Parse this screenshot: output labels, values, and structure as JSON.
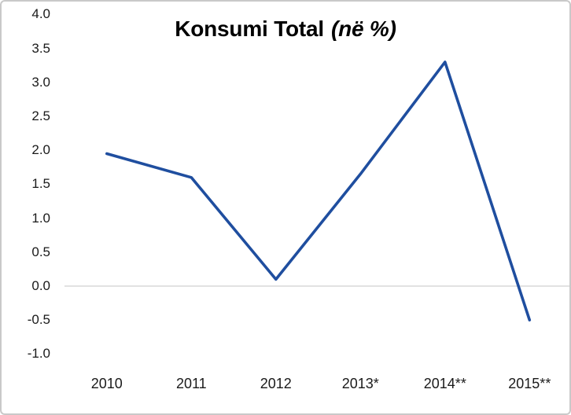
{
  "chart_data": {
    "type": "line",
    "title": "Konsumi Total (në %)",
    "title_main": "Konsumi Total",
    "title_italic": "(në %)",
    "categories": [
      "2010",
      "2011",
      "2012",
      "2013*",
      "2014**",
      "2015**"
    ],
    "values": [
      1.95,
      1.6,
      0.1,
      1.65,
      3.3,
      -0.5
    ],
    "series": [
      {
        "name": "Konsumi Total (në %)",
        "values": [
          1.95,
          1.6,
          0.1,
          1.65,
          3.3,
          -0.5
        ]
      }
    ],
    "xlabel": "",
    "ylabel": "",
    "ylim": [
      -1.0,
      4.0
    ],
    "ytick_step": 0.5,
    "ytick_labels": [
      "4.0",
      "3.5",
      "3.0",
      "2.5",
      "2.0",
      "1.5",
      "1.0",
      "0.5",
      "0.0",
      "-0.5",
      "-1.0"
    ],
    "grid": "zero-baseline-only",
    "legend_position": "none",
    "colors": {
      "series_line": "#1F4E9F",
      "zero_gridline": "#D9D9D9",
      "tick_text": "#1A1A1A",
      "title_text": "#000000",
      "chart_border": "#C9C9C9",
      "background": "#FFFFFF"
    }
  }
}
